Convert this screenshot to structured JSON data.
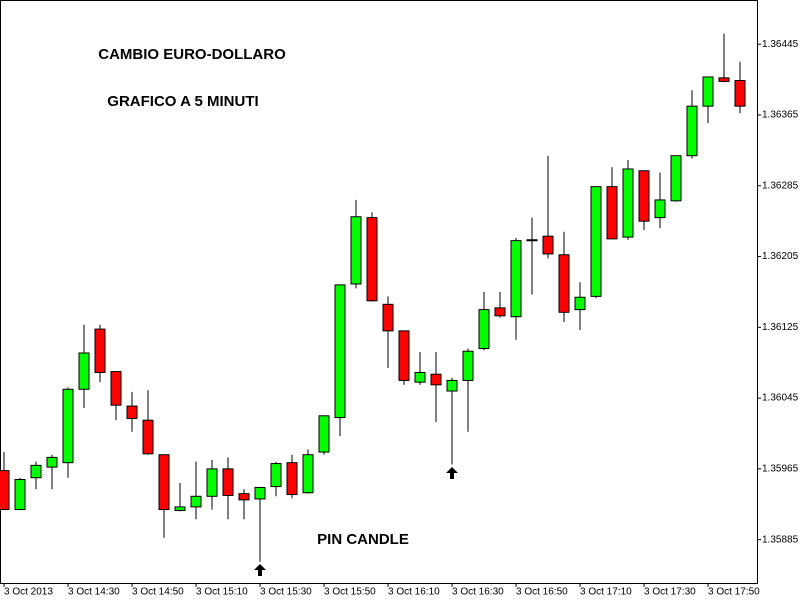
{
  "chart_data": {
    "type": "candlestick",
    "annotations": [
      "CAMBIO EURO-DOLLARO",
      "GRAFICO A 5 MINUTI",
      "PIN CANDLE"
    ],
    "up_color": "#00ff00",
    "down_color": "#ff0000",
    "wick_color": "#000000",
    "categories": [
      "3 Oct 2013",
      null,
      null,
      null,
      "3 Oct 14:30",
      null,
      null,
      null,
      "3 Oct 14:50",
      null,
      null,
      null,
      "3 Oct 15:10",
      null,
      null,
      null,
      "3 Oct 15:30",
      null,
      null,
      null,
      "3 Oct 15:50",
      null,
      null,
      null,
      "3 Oct 16:10",
      null,
      null,
      null,
      "3 Oct 16:30",
      null,
      null,
      null,
      "3 Oct 16:50",
      null,
      null,
      null,
      "3 Oct 17:10",
      null,
      null,
      null,
      "3 Oct 17:30",
      null,
      null,
      null,
      "3 Oct 17:50",
      null,
      null
    ],
    "open": [
      1.35963,
      1.35919,
      1.35955,
      1.35967,
      1.35972,
      1.36055,
      1.36123,
      1.36075,
      1.36036,
      1.3602,
      1.35981,
      1.35918,
      1.35922,
      1.35934,
      1.35965,
      1.35937,
      1.35931,
      1.35945,
      1.35972,
      1.35938,
      1.35984,
      1.36023,
      1.36174,
      1.36249,
      1.36151,
      1.36121,
      1.36063,
      1.36072,
      1.36053,
      1.36065,
      1.36101,
      1.36147,
      1.36137,
      1.36223,
      1.36228,
      1.36207,
      1.36145,
      1.3616,
      1.36284,
      1.36227,
      1.36302,
      1.36249,
      1.36268,
      1.36319,
      1.36375,
      1.36407,
      1.36404
    ],
    "high": [
      1.35984,
      1.35955,
      1.35973,
      1.35981,
      1.36057,
      1.36128,
      1.36128,
      1.36075,
      1.36052,
      1.36054,
      1.35981,
      1.35949,
      1.35973,
      1.35975,
      1.35978,
      1.35942,
      1.35944,
      1.35973,
      1.35981,
      1.35987,
      1.36025,
      1.36173,
      1.36269,
      1.36255,
      1.3616,
      1.36121,
      1.36097,
      1.36097,
      1.36068,
      1.36101,
      1.36165,
      1.36165,
      1.36226,
      1.36249,
      1.36319,
      1.36233,
      1.36176,
      1.36284,
      1.36306,
      1.36314,
      1.36302,
      1.363,
      1.36319,
      1.36393,
      1.36408,
      1.36457,
      1.36425
    ],
    "low": [
      1.35919,
      1.35919,
      1.35942,
      1.35942,
      1.35955,
      1.36034,
      1.36063,
      1.3602,
      1.36007,
      1.35981,
      1.35887,
      1.35917,
      1.35908,
      1.35919,
      1.35908,
      1.35908,
      1.3586,
      1.35934,
      1.35932,
      1.35937,
      1.35981,
      1.36002,
      1.36169,
      1.36154,
      1.36079,
      1.3606,
      1.3606,
      1.36018,
      1.3597,
      1.36007,
      1.36099,
      1.36136,
      1.36111,
      1.36162,
      1.36203,
      1.36131,
      1.36122,
      1.36158,
      1.36225,
      1.36224,
      1.36235,
      1.36237,
      1.36267,
      1.36316,
      1.36356,
      1.36402,
      1.36367
    ],
    "close": [
      1.35919,
      1.35953,
      1.35969,
      1.35978,
      1.36055,
      1.36096,
      1.36074,
      1.36037,
      1.36022,
      1.35982,
      1.35919,
      1.35922,
      1.35934,
      1.35965,
      1.35935,
      1.3593,
      1.35944,
      1.35971,
      1.35936,
      1.35981,
      1.36025,
      1.36173,
      1.3625,
      1.36155,
      1.36121,
      1.36065,
      1.36074,
      1.3606,
      1.36065,
      1.36098,
      1.36145,
      1.36138,
      1.36223,
      1.36224,
      1.36208,
      1.36142,
      1.36159,
      1.36284,
      1.36225,
      1.36304,
      1.36245,
      1.36269,
      1.36319,
      1.36375,
      1.36408,
      1.36403,
      1.36375
    ],
    "ylim": [
      1.35836,
      1.36495
    ],
    "yticks": [
      1.35885,
      1.35965,
      1.36045,
      1.36125,
      1.36205,
      1.36285,
      1.36365,
      1.36445
    ]
  }
}
